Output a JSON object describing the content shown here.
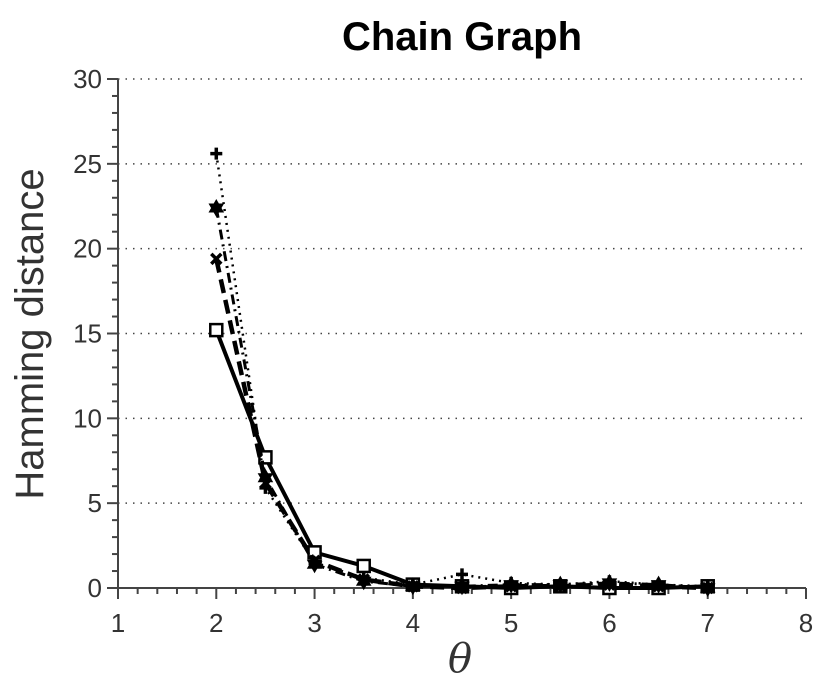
{
  "chart_data": {
    "type": "line",
    "title": "Chain Graph",
    "xlabel": "θ",
    "ylabel": "Hamming distance",
    "xlim": [
      1,
      8
    ],
    "ylim": [
      0,
      30
    ],
    "xticks": [
      1,
      2,
      3,
      4,
      5,
      6,
      7,
      8
    ],
    "yticks": [
      0,
      5,
      10,
      15,
      20,
      25,
      30
    ],
    "grid": "horizontal-dotted",
    "series": [
      {
        "marker": "square",
        "linestyle": "solid",
        "x": [
          2,
          2.5,
          3,
          3.5,
          4,
          4.5,
          5,
          5.5,
          6,
          6.5,
          7
        ],
        "values": [
          15.2,
          7.7,
          2.1,
          1.3,
          0.2,
          0.1,
          0.0,
          0.1,
          0.0,
          0.0,
          0.1
        ]
      },
      {
        "marker": "x",
        "linestyle": "dashed",
        "x": [
          2,
          2.5,
          3,
          3.5,
          4,
          4.5,
          5,
          5.5,
          6,
          6.5,
          7
        ],
        "values": [
          19.4,
          6.2,
          1.6,
          0.5,
          0.1,
          0.0,
          0.1,
          0.1,
          0.2,
          0.1,
          0.0
        ]
      },
      {
        "marker": "plus",
        "linestyle": "dotted",
        "x": [
          2,
          2.5,
          3,
          3.5,
          4,
          4.5,
          5,
          5.5,
          6,
          6.5,
          7
        ],
        "values": [
          25.6,
          5.9,
          1.5,
          0.6,
          0.2,
          0.8,
          0.3,
          0.2,
          0.4,
          0.2,
          0.1
        ]
      },
      {
        "marker": "hexagram",
        "linestyle": "dashdot",
        "x": [
          2,
          2.5,
          3,
          3.5,
          4,
          4.5,
          5,
          5.5,
          6,
          6.5,
          7
        ],
        "values": [
          22.4,
          6.5,
          1.4,
          0.4,
          0.1,
          0.1,
          0.2,
          0.2,
          0.3,
          0.2,
          0.0
        ]
      }
    ]
  }
}
